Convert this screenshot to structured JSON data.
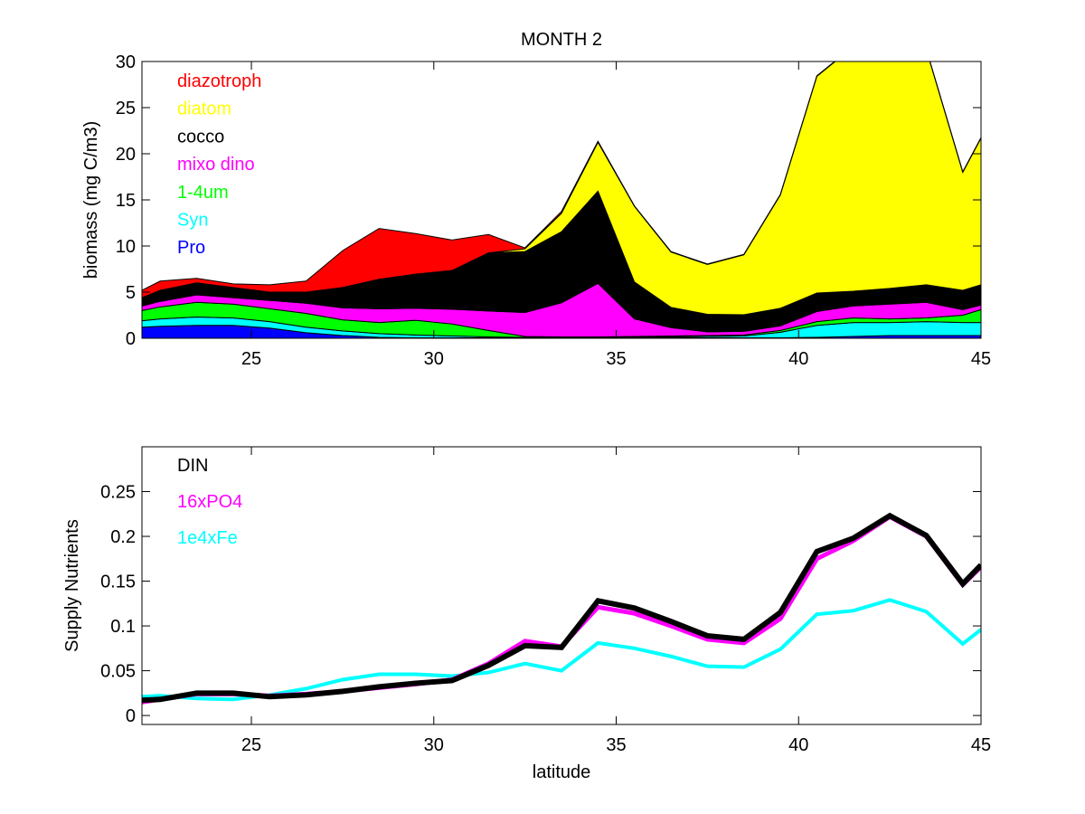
{
  "chart_data": [
    {
      "type": "area",
      "stacked": true,
      "title": "MONTH 2",
      "xlabel": "",
      "ylabel": "biomass (mg C/m3)",
      "xlim": [
        22,
        45
      ],
      "ylim": [
        0,
        30
      ],
      "xticks": [
        25,
        30,
        35,
        40,
        45
      ],
      "xtick_labels": [
        "25",
        "30",
        "35",
        "40",
        "45"
      ],
      "yticks": [
        0,
        5,
        10,
        15,
        20,
        25,
        30
      ],
      "ytick_labels": [
        "0",
        "5",
        "10",
        "15",
        "20",
        "25",
        "30"
      ],
      "grid": false,
      "legend_position": "top-left",
      "x": [
        22,
        22.5,
        23.5,
        24.5,
        25.5,
        26.5,
        27.5,
        28.5,
        29.5,
        30.5,
        31.5,
        32.5,
        33.5,
        34.5,
        35.5,
        36.5,
        37.5,
        38.5,
        39.5,
        40.5,
        41.5,
        42.5,
        43.5,
        44.5,
        45
      ],
      "series": [
        {
          "name": "Pro",
          "color": "#0000ff",
          "values": [
            1.2,
            1.3,
            1.4,
            1.4,
            1.1,
            0.6,
            0.3,
            0.1,
            0.05,
            0.05,
            0.05,
            0.05,
            0.05,
            0.05,
            0.05,
            0.05,
            0.05,
            0.05,
            0.05,
            0.1,
            0.2,
            0.3,
            0.3,
            0.3,
            0.3
          ]
        },
        {
          "name": "Syn",
          "color": "#00ffff",
          "values": [
            0.7,
            0.8,
            0.9,
            0.8,
            0.7,
            0.6,
            0.5,
            0.4,
            0.3,
            0.2,
            0.1,
            0.05,
            0.05,
            0.05,
            0.05,
            0.1,
            0.15,
            0.2,
            0.6,
            1.3,
            1.5,
            1.4,
            1.5,
            1.4,
            1.4
          ]
        },
        {
          "name": "1-4um",
          "color": "#00ff00",
          "values": [
            1.1,
            1.3,
            1.6,
            1.5,
            1.4,
            1.5,
            1.2,
            1.2,
            1.6,
            1.3,
            0.7,
            0.1,
            0.05,
            0.05,
            0.1,
            0.1,
            0.1,
            0.1,
            0.2,
            0.4,
            0.5,
            0.4,
            0.4,
            0.8,
            1.4
          ]
        },
        {
          "name": "mixo dino",
          "color": "#ff00ff",
          "values": [
            0.5,
            0.6,
            0.8,
            0.7,
            0.9,
            1.1,
            1.3,
            1.5,
            1.3,
            1.6,
            2.1,
            2.6,
            3.7,
            5.8,
            1.9,
            0.9,
            0.4,
            0.4,
            0.5,
            1.1,
            1.3,
            1.6,
            1.7,
            0.6,
            0.5
          ]
        },
        {
          "name": "cocco",
          "color": "#000000",
          "values": [
            0.9,
            1.2,
            1.3,
            1.1,
            0.9,
            1.2,
            2.2,
            3.2,
            3.7,
            4.2,
            6.3,
            6.6,
            7.7,
            10.0,
            4.0,
            2.2,
            1.9,
            1.8,
            1.9,
            2.0,
            1.6,
            1.7,
            1.9,
            2.1,
            2.2
          ]
        },
        {
          "name": "diatom",
          "color": "#ffff00",
          "values": [
            0,
            0,
            0,
            0,
            0,
            0,
            0,
            0,
            0,
            0,
            0,
            0.3,
            2.0,
            5.3,
            8.2,
            6.0,
            5.4,
            6.5,
            12.3,
            23.5,
            26.5,
            27.3,
            25.5,
            12.8,
            15.9
          ]
        },
        {
          "name": "diazotroph",
          "color": "#ff0000",
          "values": [
            0.8,
            1.0,
            0.5,
            0.4,
            0.8,
            1.2,
            4.0,
            5.5,
            4.4,
            3.3,
            2.0,
            0.1,
            0.2,
            0.1,
            0.05,
            0.05,
            0.05,
            0.05,
            0.05,
            0.05,
            0.05,
            0.05,
            0.05,
            0.05,
            0.05
          ]
        }
      ]
    },
    {
      "type": "line",
      "title": "",
      "xlabel": "latitude",
      "ylabel": "Supply Nutrients",
      "xlim": [
        22,
        45
      ],
      "ylim": [
        -0.01,
        0.3
      ],
      "xticks": [
        25,
        30,
        35,
        40,
        45
      ],
      "xtick_labels": [
        "25",
        "30",
        "35",
        "40",
        "45"
      ],
      "yticks": [
        0,
        0.05,
        0.1,
        0.15,
        0.2,
        0.25
      ],
      "ytick_labels": [
        "0",
        "0.05",
        "0.1",
        "0.15",
        "0.2",
        "0.25"
      ],
      "grid": false,
      "legend_position": "top-left",
      "x": [
        22,
        22.5,
        23.5,
        24.5,
        25.5,
        26.5,
        27.5,
        28.5,
        29.5,
        30.5,
        31.5,
        32.5,
        33.5,
        34.5,
        35.5,
        36.5,
        37.5,
        38.5,
        39.5,
        40.5,
        41.5,
        42.5,
        43.5,
        44.5,
        45
      ],
      "series": [
        {
          "name": "1e4xFe",
          "color": "#00ffff",
          "values": [
            0.021,
            0.022,
            0.019,
            0.018,
            0.023,
            0.03,
            0.04,
            0.046,
            0.046,
            0.044,
            0.048,
            0.058,
            0.05,
            0.081,
            0.075,
            0.066,
            0.055,
            0.054,
            0.074,
            0.113,
            0.117,
            0.129,
            0.116,
            0.08,
            0.096
          ]
        },
        {
          "name": "16xPO4",
          "color": "#ff00ff",
          "values": [
            0.015,
            0.018,
            0.024,
            0.024,
            0.022,
            0.024,
            0.027,
            0.031,
            0.035,
            0.04,
            0.058,
            0.083,
            0.077,
            0.121,
            0.114,
            0.1,
            0.085,
            0.081,
            0.108,
            0.175,
            0.195,
            0.222,
            0.2,
            0.146,
            0.166
          ]
        },
        {
          "name": "DIN",
          "color": "#000000",
          "values": [
            0.017,
            0.018,
            0.025,
            0.025,
            0.021,
            0.023,
            0.027,
            0.032,
            0.036,
            0.039,
            0.056,
            0.078,
            0.076,
            0.128,
            0.12,
            0.105,
            0.089,
            0.085,
            0.115,
            0.183,
            0.198,
            0.223,
            0.201,
            0.147,
            0.168
          ]
        }
      ]
    }
  ]
}
